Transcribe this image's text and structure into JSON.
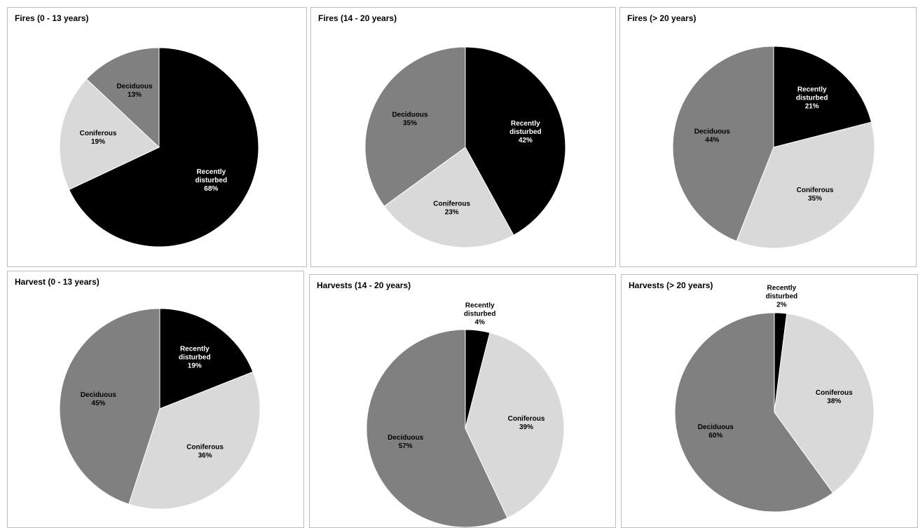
{
  "chart_data": [
    {
      "type": "pie",
      "title": "Fires (0 - 13 years)",
      "slices": [
        {
          "label": [
            "Recently",
            "disturbed",
            "68%"
          ],
          "name": "Recently disturbed",
          "value": 68,
          "color": "#000000",
          "text_color": "#ffffff"
        },
        {
          "label": [
            "Coniferous",
            "19%"
          ],
          "name": "Coniferous",
          "value": 19,
          "color": "#d9d9d9",
          "text_color": "#000000"
        },
        {
          "label": [
            "Deciduous",
            "13%"
          ],
          "name": "Deciduous",
          "value": 13,
          "color": "#808080",
          "text_color": "#000000"
        }
      ]
    },
    {
      "type": "pie",
      "title": "Fires (14 - 20 years)",
      "slices": [
        {
          "label": [
            "Recently",
            "disturbed",
            "42%"
          ],
          "name": "Recently disturbed",
          "value": 42,
          "color": "#000000",
          "text_color": "#ffffff"
        },
        {
          "label": [
            "Coniferous",
            "23%"
          ],
          "name": "Coniferous",
          "value": 23,
          "color": "#d9d9d9",
          "text_color": "#000000"
        },
        {
          "label": [
            "Deciduous",
            "35%"
          ],
          "name": "Deciduous",
          "value": 35,
          "color": "#808080",
          "text_color": "#000000"
        }
      ]
    },
    {
      "type": "pie",
      "title": "Fires (> 20 years)",
      "slices": [
        {
          "label": [
            "Recently",
            "disturbed",
            "21%"
          ],
          "name": "Recently disturbed",
          "value": 21,
          "color": "#000000",
          "text_color": "#ffffff"
        },
        {
          "label": [
            "Coniferous",
            "35%"
          ],
          "name": "Coniferous",
          "value": 35,
          "color": "#d9d9d9",
          "text_color": "#000000"
        },
        {
          "label": [
            "Deciduous",
            "44%"
          ],
          "name": "Deciduous",
          "value": 44,
          "color": "#808080",
          "text_color": "#000000"
        }
      ]
    },
    {
      "type": "pie",
      "title": "Harvest (0 - 13 years)",
      "slices": [
        {
          "label": [
            "Recently",
            "disturbed",
            "19%"
          ],
          "name": "Recently disturbed",
          "value": 19,
          "color": "#000000",
          "text_color": "#ffffff"
        },
        {
          "label": [
            "Coniferous",
            "36%"
          ],
          "name": "Coniferous",
          "value": 36,
          "color": "#d9d9d9",
          "text_color": "#000000"
        },
        {
          "label": [
            "Deciduous",
            "45%"
          ],
          "name": "Deciduous",
          "value": 45,
          "color": "#808080",
          "text_color": "#000000"
        }
      ]
    },
    {
      "type": "pie",
      "title": "Harvests (14 - 20 years)",
      "slices": [
        {
          "label": [
            "Recently",
            "disturbed",
            "4%"
          ],
          "name": "Recently disturbed",
          "value": 4,
          "color": "#000000",
          "text_color": "#000000",
          "outside": true
        },
        {
          "label": [
            "Coniferous",
            "39%"
          ],
          "name": "Coniferous",
          "value": 39,
          "color": "#d9d9d9",
          "text_color": "#000000"
        },
        {
          "label": [
            "Deciduous",
            "57%"
          ],
          "name": "Deciduous",
          "value": 57,
          "color": "#808080",
          "text_color": "#000000"
        }
      ]
    },
    {
      "type": "pie",
      "title": "Harvests (> 20 years)",
      "slices": [
        {
          "label": [
            "Recently",
            "disturbed",
            "2%"
          ],
          "name": "Recently disturbed",
          "value": 2,
          "color": "#000000",
          "text_color": "#000000",
          "outside": true
        },
        {
          "label": [
            "Coniferous",
            "38%"
          ],
          "name": "Coniferous",
          "value": 38,
          "color": "#d9d9d9",
          "text_color": "#000000"
        },
        {
          "label": [
            "Deciduous",
            "60%"
          ],
          "name": "Deciduous",
          "value": 60,
          "color": "#808080",
          "text_color": "#000000"
        }
      ]
    }
  ]
}
